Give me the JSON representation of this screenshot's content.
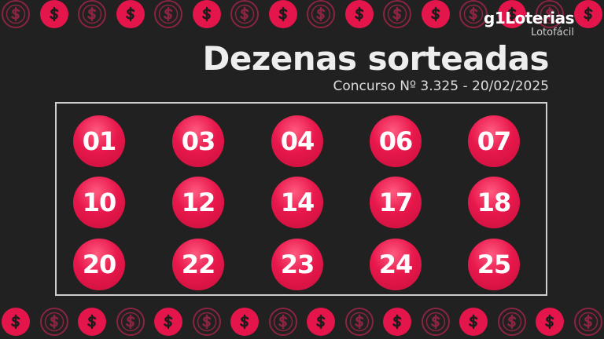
{
  "brand": {
    "logo": "g1Loterias",
    "game": "Lotofácil"
  },
  "title": "Dezenas sorteadas",
  "subtitle": "Concurso Nº 3.325 - 20/02/2025",
  "numbers": [
    "01",
    "03",
    "04",
    "06",
    "07",
    "10",
    "12",
    "14",
    "17",
    "18",
    "20",
    "22",
    "23",
    "24",
    "25"
  ],
  "colors": {
    "background": "#222121",
    "accent": "#e3154a",
    "coin_outline": "#8a2440"
  },
  "decoration_icon": "dollar-coin-icon"
}
